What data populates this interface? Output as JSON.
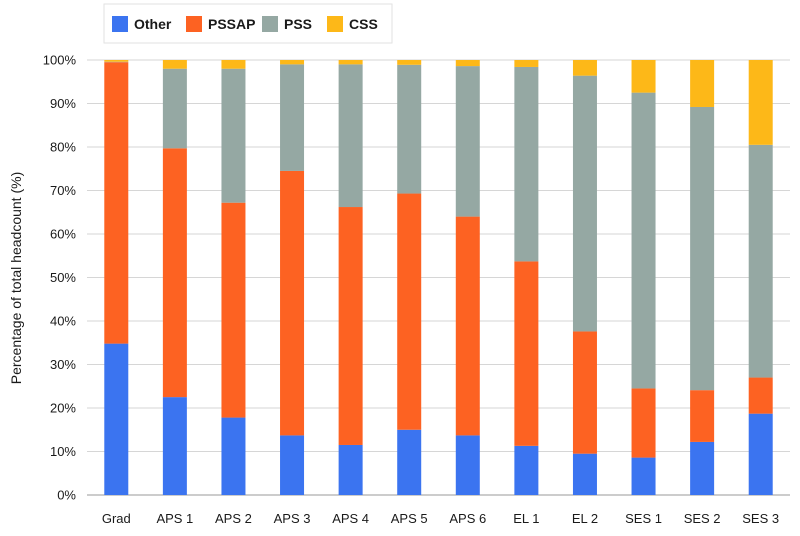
{
  "chart_data": {
    "type": "bar",
    "stacked": true,
    "categories": [
      "Grad",
      "APS 1",
      "APS 2",
      "APS 3",
      "APS 4",
      "APS 5",
      "APS 6",
      "EL 1",
      "EL 2",
      "SES 1",
      "SES 2",
      "SES 3"
    ],
    "series": [
      {
        "name": "Other",
        "color": "#3b74f0",
        "values": [
          34.8,
          22.5,
          17.8,
          13.7,
          11.5,
          15.0,
          13.7,
          11.3,
          9.5,
          8.6,
          12.2,
          18.7
        ]
      },
      {
        "name": "PSSAP",
        "color": "#fd6222",
        "values": [
          64.7,
          57.2,
          49.4,
          60.8,
          54.7,
          54.3,
          50.3,
          42.4,
          28.1,
          15.9,
          11.9,
          8.3
        ]
      },
      {
        "name": "PSS",
        "color": "#95a8a3",
        "values": [
          0.1,
          18.3,
          30.8,
          24.5,
          32.8,
          29.6,
          34.6,
          44.7,
          58.8,
          68.0,
          65.1,
          53.5
        ]
      },
      {
        "name": "CSS",
        "color": "#fdb818",
        "values": [
          0.4,
          2.0,
          2.0,
          1.0,
          1.0,
          1.1,
          1.4,
          1.6,
          3.6,
          7.5,
          10.8,
          19.5
        ]
      }
    ],
    "ylabel": "Percentage of total headcount (%)",
    "xlabel": "",
    "ylim": [
      0,
      100
    ],
    "yticks": [
      "0%",
      "10%",
      "20%",
      "30%",
      "40%",
      "50%",
      "60%",
      "70%",
      "80%",
      "90%",
      "100%"
    ],
    "grid": true,
    "legend_position": "top-left"
  }
}
